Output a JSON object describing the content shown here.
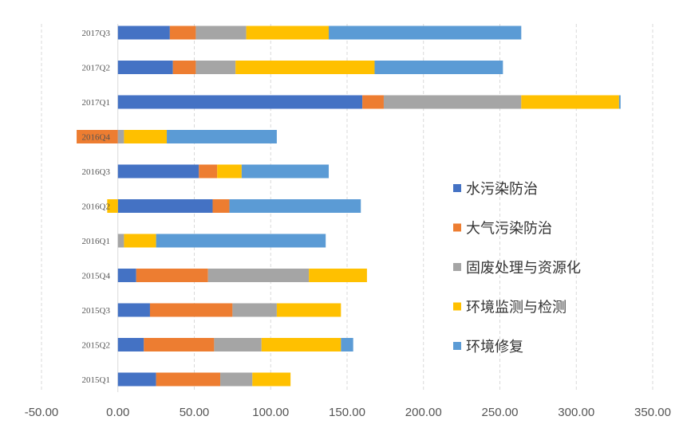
{
  "chart_data": {
    "type": "bar",
    "orientation": "horizontal",
    "stacked": true,
    "categories": [
      "2015Q1",
      "2015Q2",
      "2015Q3",
      "2015Q4",
      "2016Q1",
      "2016Q2",
      "2016Q3",
      "2016Q4",
      "2017Q1",
      "2017Q2",
      "2017Q3"
    ],
    "series": [
      {
        "name": "水污染防治",
        "color": "#4472C4",
        "values": [
          25,
          17,
          21,
          12,
          0,
          62,
          53,
          0,
          160,
          36,
          34
        ]
      },
      {
        "name": "大气污染防治",
        "color": "#ED7D31",
        "values": [
          42,
          46,
          54,
          47,
          0,
          11,
          12,
          -27,
          14,
          15,
          17
        ]
      },
      {
        "name": "固废处理与资源化",
        "color": "#A5A5A5",
        "values": [
          21,
          31,
          29,
          66,
          4,
          0,
          0,
          4,
          90,
          26,
          33
        ]
      },
      {
        "name": "环境监测与检测",
        "color": "#FFC000",
        "values": [
          25,
          52,
          42,
          38,
          21,
          -7,
          16,
          28,
          64,
          91,
          54
        ]
      },
      {
        "name": "环境修复",
        "color": "#5B9BD5",
        "values": [
          0,
          8,
          0,
          0,
          111,
          86,
          57,
          72,
          1,
          84,
          126
        ]
      }
    ],
    "xlim": [
      -50,
      350
    ],
    "xticks": [
      "-50.00",
      "0.00",
      "50.00",
      "100.00",
      "150.00",
      "200.00",
      "250.00",
      "300.00",
      "350.00"
    ],
    "xtick_values": [
      -50,
      0,
      50,
      100,
      150,
      200,
      250,
      300,
      350
    ],
    "legend_position": "right-center",
    "grid": "vertical"
  }
}
